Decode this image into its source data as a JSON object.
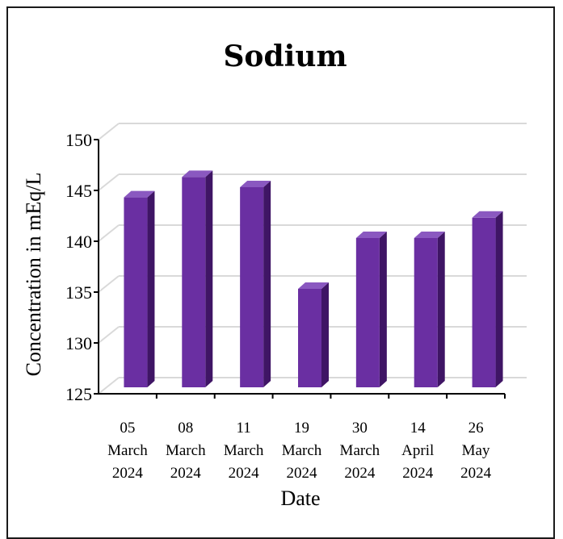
{
  "chart_data": {
    "type": "bar",
    "title": "Sodium",
    "xlabel": "Date",
    "ylabel": "Concentration in mEq/L",
    "categories": [
      [
        "05",
        "March",
        "2024"
      ],
      [
        "08",
        "March",
        "2024"
      ],
      [
        "11",
        "March",
        "2024"
      ],
      [
        "19",
        "March",
        "2024"
      ],
      [
        "30",
        "March",
        "2024"
      ],
      [
        "14",
        "April",
        "2024"
      ],
      [
        "26",
        "May",
        "2024"
      ]
    ],
    "values": [
      144,
      146,
      145,
      135,
      140,
      140,
      142
    ],
    "ylim": [
      125,
      150
    ],
    "yticks": [
      125,
      130,
      135,
      140,
      145,
      150
    ],
    "grid": true,
    "style": "3d-column",
    "colors": {
      "bar_front": "#6a2fa2",
      "bar_side": "#3f1565",
      "bar_top": "#8a58c0",
      "grid": "#d9d9d9",
      "axis": "#000000"
    }
  }
}
